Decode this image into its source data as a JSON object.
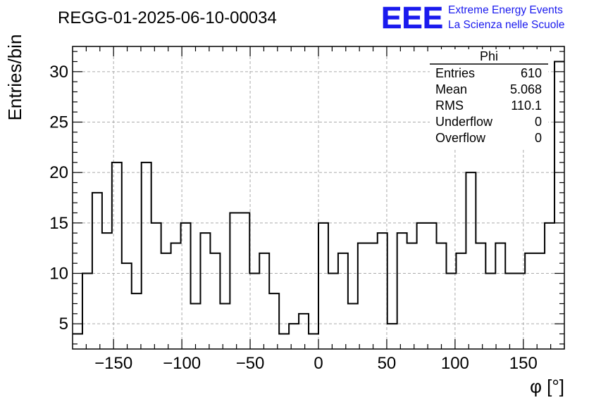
{
  "header": {
    "run_title": "REGG-01-2025-06-10-00034",
    "logo_text": "EEE",
    "logo_line1": "Extreme Energy Events",
    "logo_line2": "La Scienza nelle Scuole"
  },
  "colors": {
    "logo_blue": "#1a1aee",
    "grid": "#aaaaaa",
    "line": "#000000"
  },
  "stats": {
    "title": "Phi",
    "rows": [
      {
        "label": "Entries",
        "value": "610"
      },
      {
        "label": "Mean",
        "value": "5.068"
      },
      {
        "label": "RMS",
        "value": "110.1"
      },
      {
        "label": "Underflow",
        "value": "0"
      },
      {
        "label": "Overflow",
        "value": "0"
      }
    ]
  },
  "chart_data": {
    "type": "histogram",
    "title": "REGG-01-2025-06-10-00034",
    "xlabel": "φ [°]",
    "ylabel": "Entries/bin",
    "xlim": [
      -180,
      180
    ],
    "ylim": [
      2.5,
      32.5
    ],
    "bin_width": 7.2,
    "grid": true,
    "x_ticks": [
      -150,
      -100,
      -50,
      0,
      50,
      100,
      150
    ],
    "x_tick_labels": [
      "−150",
      "−100",
      "−50",
      "0",
      "50",
      "100",
      "150"
    ],
    "y_ticks": [
      5,
      10,
      15,
      20,
      25,
      30
    ],
    "y_tick_labels": [
      "5",
      "10",
      "15",
      "20",
      "25",
      "30"
    ],
    "values": [
      4,
      10,
      18,
      14,
      21,
      11,
      8,
      21,
      15,
      12,
      13,
      15,
      7,
      14,
      12,
      7,
      16,
      16,
      10,
      12,
      8,
      4,
      5,
      6,
      4,
      15,
      10,
      12,
      7,
      13,
      13,
      14,
      5,
      14,
      13,
      15,
      15,
      13,
      10,
      12,
      20,
      13,
      10,
      13,
      10,
      10,
      12,
      12,
      15,
      31
    ]
  }
}
